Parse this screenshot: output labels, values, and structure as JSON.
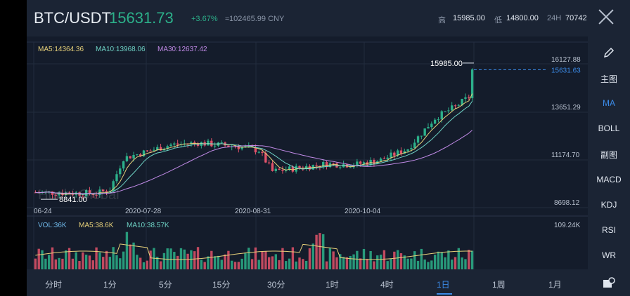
{
  "header": {
    "pair": "BTC/USDT",
    "price": "15631.73",
    "change": "+3.67%",
    "cny": "≈102465.99 CNY",
    "high_label": "高",
    "high_value": "15985.00",
    "low_label": "低",
    "low_value": "14800.00",
    "vol_label": "24H",
    "vol_value": "70742"
  },
  "chart": {
    "ma5": "MA5:14364.36",
    "ma10": "MA10:13968.06",
    "ma30": "MA30:12637.42",
    "vol": "VOL:36K",
    "vol_ma5": "MA5:38.6K",
    "vol_ma10": "MA10:38.57K",
    "max_vol": "109.24K",
    "high_marker": "15985.00",
    "low_marker": "8841.00",
    "current_tag": "15631.63",
    "watermark": "Huobi Global"
  },
  "chart_data": {
    "type": "candlestick",
    "title": "BTC/USDT 1日",
    "y_ticks": [
      "16127.88",
      "13651.29",
      "11174.70",
      "8698.12"
    ],
    "y_range": [
      8698.12,
      16127.88
    ],
    "x_ticks": [
      "06-24",
      "2020-07-28",
      "2020-08-31",
      "2020-10-04"
    ],
    "highest": 15985.0,
    "lowest": 8841.0,
    "last": 15631.63,
    "ma_colors": {
      "ma5": "#e7d17a",
      "ma10": "#6fd3c6",
      "ma30": "#c08ae6"
    }
  },
  "right_panel": {
    "main": "主图",
    "ma": "MA",
    "boll": "BOLL",
    "sub": "副图",
    "macd": "MACD",
    "kdj": "KDJ",
    "rsi": "RSI",
    "wr": "WR"
  },
  "periods": [
    "分时",
    "1分",
    "5分",
    "15分",
    "30分",
    "1时",
    "4时",
    "1日",
    "1周",
    "1月"
  ],
  "colors": {
    "up": "#2cb08a",
    "down": "#e0526a",
    "accent": "#3b8be8"
  }
}
